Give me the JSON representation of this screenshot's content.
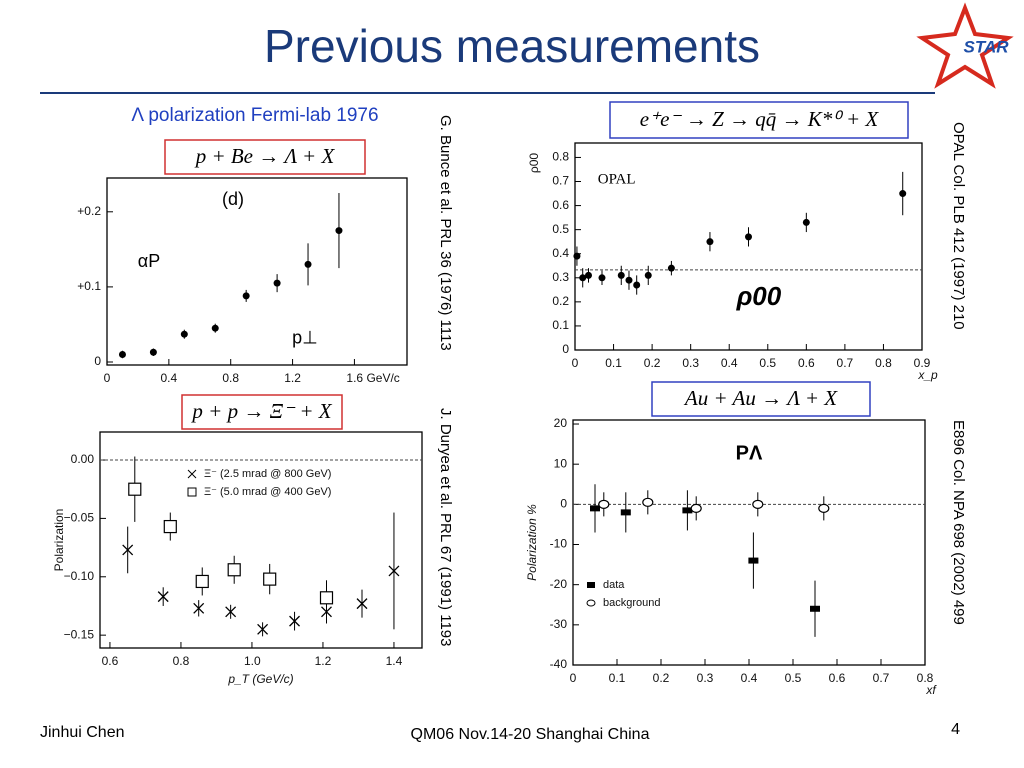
{
  "slide": {
    "title": "Previous measurements",
    "logo": "STAR",
    "heading": "Λ polarization Fermi-lab 1976",
    "reactions": [
      "p + Be → Λ + X",
      "e⁺e⁻ → Z → qq̄ → K*⁰ + X",
      "p + p → Ξ⁻ + X",
      "Au + Au → Λ + X"
    ],
    "references": [
      "G. Bunce et al. PRL 36 (1976) 1113",
      "OPAL Col. PLB 412 (1997) 210",
      "J. Duryea et al. PRL 67 (1991) 1193",
      "E896 Col. NPA 698 (2002) 499"
    ],
    "footer": {
      "author": "Jinhui Chen",
      "event": "QM06 Nov.14-20 Shanghai China",
      "page": "4"
    }
  },
  "chart_data": [
    {
      "type": "scatter",
      "annotations": [
        "(d)",
        "αP",
        "p⊥"
      ],
      "xlim": [
        0,
        1.94
      ],
      "ylim": [
        -0.004,
        0.245
      ],
      "xticks": [
        0,
        0.4,
        0.8,
        1.2,
        {
          "value": 1.6,
          "label": "1.6 GeV/c"
        }
      ],
      "yticks": [
        0,
        {
          "value": 0.1,
          "label": "+0.1"
        },
        {
          "value": 0.2,
          "label": "+0.2"
        }
      ],
      "series": [
        {
          "color": "#000000",
          "marker": "dot",
          "x": [
            0.1,
            0.3,
            0.5,
            0.7,
            0.9,
            1.1,
            1.3,
            1.5
          ],
          "values": [
            0.01,
            0.013,
            0.037,
            0.045,
            0.088,
            0.105,
            0.13,
            0.175
          ],
          "errors": [
            0.005,
            0.005,
            0.006,
            0.006,
            0.008,
            0.012,
            0.028,
            0.05
          ]
        }
      ]
    },
    {
      "type": "scatter",
      "annotations": [
        "OPAL",
        "ρ00"
      ],
      "x_label": "x_p",
      "y_label": "ρ00",
      "xlim": [
        0,
        0.9
      ],
      "ylim": [
        0,
        0.86
      ],
      "xticks": [
        0,
        0.1,
        0.2,
        0.3,
        0.4,
        0.5,
        0.6,
        0.7,
        0.8,
        0.9
      ],
      "yticks": [
        0,
        0.1,
        0.2,
        0.3,
        0.4,
        0.5,
        0.6,
        0.7,
        0.8
      ],
      "reference_line": 0.333,
      "series": [
        {
          "color": "#000000",
          "marker": "dot",
          "x": [
            0.005,
            0.02,
            0.035,
            0.07,
            0.12,
            0.14,
            0.16,
            0.19,
            0.25,
            0.35,
            0.45,
            0.6,
            0.85
          ],
          "values": [
            0.39,
            0.3,
            0.31,
            0.3,
            0.31,
            0.29,
            0.27,
            0.31,
            0.34,
            0.45,
            0.47,
            0.53,
            0.65
          ],
          "errors": [
            0.04,
            0.04,
            0.03,
            0.03,
            0.04,
            0.04,
            0.04,
            0.04,
            0.03,
            0.04,
            0.04,
            0.04,
            0.09
          ]
        }
      ]
    },
    {
      "type": "scatter",
      "x_label": "p_T (GeV/c)",
      "y_label": "Polarization",
      "legend": "upper right",
      "xlim": [
        0.572,
        1.479
      ],
      "ylim": [
        -0.161,
        0.024
      ],
      "xticks": [
        0.6,
        0.8,
        {
          "value": 1,
          "label": "1.0"
        },
        1.2,
        1.4
      ],
      "yticks": [
        {
          "value": 0,
          "label": "0.00"
        },
        {
          "value": -0.05,
          "label": "−0.05"
        },
        {
          "value": -0.1,
          "label": "−0.10"
        },
        {
          "value": -0.15,
          "label": "−0.15"
        }
      ],
      "reference_line": 0,
      "series": [
        {
          "name": "Ξ⁻ (2.5 mrad @ 800 GeV)",
          "color": "#000000",
          "marker": "x",
          "x": [
            0.65,
            0.75,
            0.85,
            0.94,
            1.03,
            1.12,
            1.21,
            1.31,
            1.4
          ],
          "values": [
            -0.077,
            -0.117,
            -0.127,
            -0.13,
            -0.145,
            -0.138,
            -0.13,
            -0.123,
            -0.095
          ],
          "errors": [
            0.02,
            0.008,
            0.007,
            0.006,
            0.006,
            0.008,
            0.01,
            0.012,
            0.05
          ]
        },
        {
          "name": "Ξ⁻ (5.0 mrad @ 400 GeV)",
          "color": "#000000",
          "marker": "square",
          "x": [
            0.67,
            0.77,
            0.86,
            0.95,
            1.05,
            1.21
          ],
          "values": [
            -0.025,
            -0.057,
            -0.104,
            -0.094,
            -0.102,
            -0.118
          ],
          "errors": [
            0.028,
            0.012,
            0.012,
            0.012,
            0.013,
            0.015
          ]
        }
      ]
    },
    {
      "type": "scatter",
      "annotations": [
        "PΛ"
      ],
      "x_label": "xf",
      "y_label": "Polarization %",
      "legend": "lower left",
      "xlim": [
        0,
        0.8
      ],
      "ylim": [
        -40,
        21
      ],
      "xticks": [
        0,
        0.1,
        0.2,
        0.3,
        0.4,
        0.5,
        0.6,
        0.7,
        0.8
      ],
      "yticks": [
        20,
        10,
        0,
        -10,
        -20,
        -30,
        -40
      ],
      "reference_line": 0,
      "series": [
        {
          "name": "data",
          "color": "#000000",
          "marker": "square-filled",
          "x": [
            0.05,
            0.12,
            0.26,
            0.41,
            0.55
          ],
          "values": [
            -1,
            -2,
            -1.5,
            -14,
            -26
          ],
          "errors": [
            6,
            5,
            5,
            7,
            7
          ]
        },
        {
          "name": "background",
          "color": "#000000",
          "marker": "circle-open",
          "x": [
            0.07,
            0.17,
            0.28,
            0.42,
            0.57
          ],
          "values": [
            0,
            0.5,
            -1,
            0,
            -1
          ],
          "errors": [
            3,
            3,
            3,
            3,
            3
          ]
        }
      ]
    }
  ]
}
